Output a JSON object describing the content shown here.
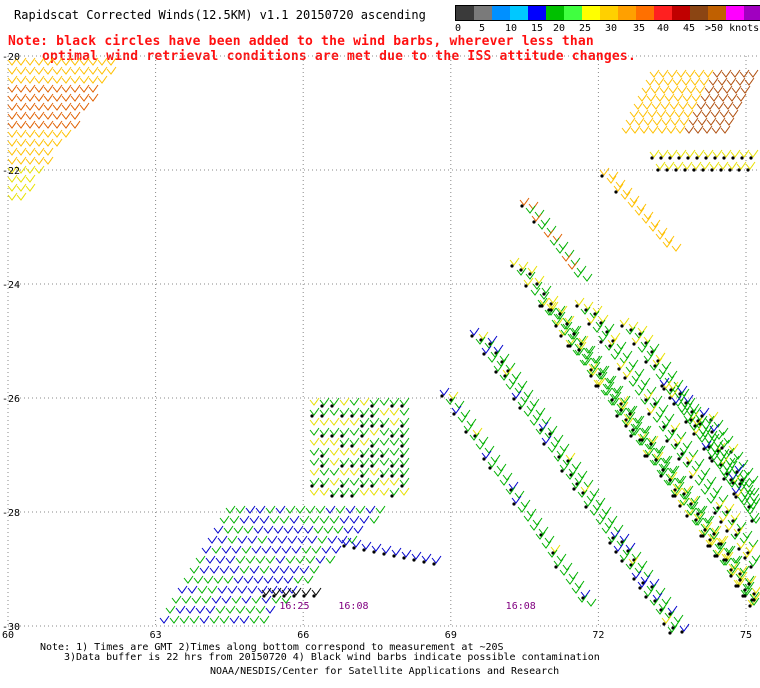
{
  "title": "Rapidscat Corrected Winds(12.5KM) v1.1 20150720 ascending",
  "note": {
    "line1": "Note: black circles have been added to the wind barbs, wherever less than",
    "line2": "optimal wind retrieval conditions are met due to the ISS attitude changes."
  },
  "scale": {
    "labels": [
      "0",
      "5",
      "10",
      "15",
      "20",
      "25",
      "30",
      "35",
      "40",
      "45",
      ">50 knots"
    ],
    "colors": [
      "#3a3a3a",
      "#7a7a7a",
      "#0090ff",
      "#00c8ff",
      "#0000ff",
      "#00c000",
      "#40ff40",
      "#ffff00",
      "#ffd000",
      "#ffa000",
      "#ff7000",
      "#ff2020",
      "#c00000",
      "#8b4513",
      "#c06000",
      "#ff00ff",
      "#a000c0",
      "#400080"
    ]
  },
  "map": {
    "lat_labels": [
      "-20",
      "-22",
      "-24",
      "-26",
      "-28",
      "-30"
    ],
    "lon_labels": [
      "60",
      "63",
      "66",
      "69",
      "72",
      "75"
    ],
    "time_labels": [
      {
        "text": "16:25",
        "lon": 65.8
      },
      {
        "text": "16:08",
        "lon": 67.0
      },
      {
        "text": "16:08",
        "lon": 70.4
      }
    ],
    "speed_colors": {
      "blue": "#0000cc",
      "green": "#00b000",
      "yellow": "#e8e000",
      "gold": "#ffc000",
      "orange": "#e06000",
      "brown": "#b05010",
      "black": "#000000"
    },
    "time_label_color": "#800080"
  },
  "footer": {
    "line1": "Note: 1) Times are GMT 2)Times along bottom correspond to measurement at ~20S",
    "line2": "3)Data buffer is 22 hrs from 20150720 4) Black wind barbs indicate possible contamination",
    "line3": "NOAA/NESDIS/Center for Satellite Applications and Research"
  }
}
